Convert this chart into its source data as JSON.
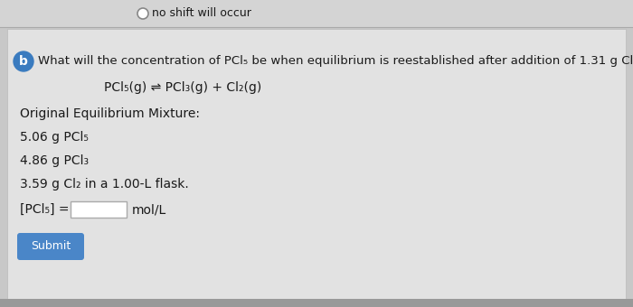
{
  "bg_color": "#c8c8c8",
  "top_strip_color": "#d4d4d4",
  "panel_color": "#e2e2e2",
  "top_strip_text": "no shift will occur",
  "question_label": "b",
  "question_label_bg": "#3a7bbf",
  "question_text": "What will the concentration of PCl",
  "question_text2": " be when equilibrium is reestablished after addition of 1.31 g Cl",
  "question_text3": "?",
  "equation_text": "PCl",
  "original_label": "Original Equilibrium Mixture:",
  "item1a": "5.06 g PCl",
  "item2a": "4.86 g PCl",
  "item3": "3.59 g Cl",
  "item3b": " in a 1.00-L flask.",
  "concentration_label": "[PCl",
  "concentration_label2": "] =",
  "unit_label": "mol/L",
  "submit_text": "Submit",
  "submit_bg": "#4a86c8",
  "submit_text_color": "#ffffff",
  "text_color": "#1a1a1a",
  "sub5": "5",
  "sub3": "3",
  "sub2": "2",
  "font_size_question": 9.5,
  "font_size_body": 10,
  "font_size_equation": 10,
  "font_size_small": 7
}
